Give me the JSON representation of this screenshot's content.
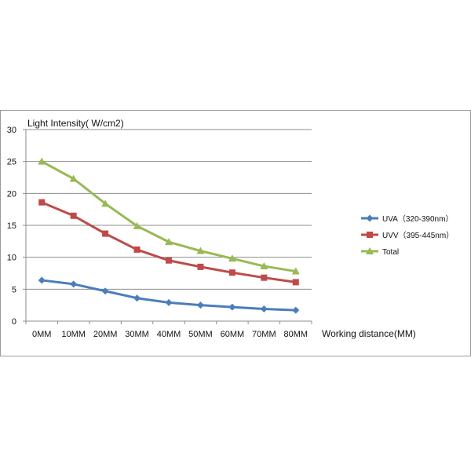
{
  "chart_data": {
    "type": "line",
    "title": "",
    "ylabel": "Light Intensity( W/cm2)",
    "xlabel": "Working distance(MM)",
    "categories": [
      "0MM",
      "10MM",
      "20MM",
      "30MM",
      "40MM",
      "50MM",
      "60MM",
      "70MM",
      "80MM"
    ],
    "ylim": [
      0,
      30
    ],
    "yticks": [
      "0",
      "5",
      "10",
      "15",
      "20",
      "25",
      "30"
    ],
    "grid": true,
    "legend_position": "right",
    "series": [
      {
        "name": "UVA（320-390nm）",
        "color": "#4a7ebb",
        "marker": "diamond",
        "values": [
          6.4,
          5.8,
          4.7,
          3.6,
          2.9,
          2.5,
          2.2,
          1.9,
          1.7
        ]
      },
      {
        "name": "UVV（395-445nm）",
        "color": "#be4b48",
        "marker": "square",
        "values": [
          18.6,
          16.5,
          13.7,
          11.2,
          9.5,
          8.5,
          7.6,
          6.8,
          6.1
        ]
      },
      {
        "name": "Total",
        "color": "#98b954",
        "marker": "triangle",
        "values": [
          25.0,
          22.3,
          18.4,
          14.9,
          12.4,
          11.0,
          9.8,
          8.6,
          7.8
        ]
      }
    ]
  }
}
